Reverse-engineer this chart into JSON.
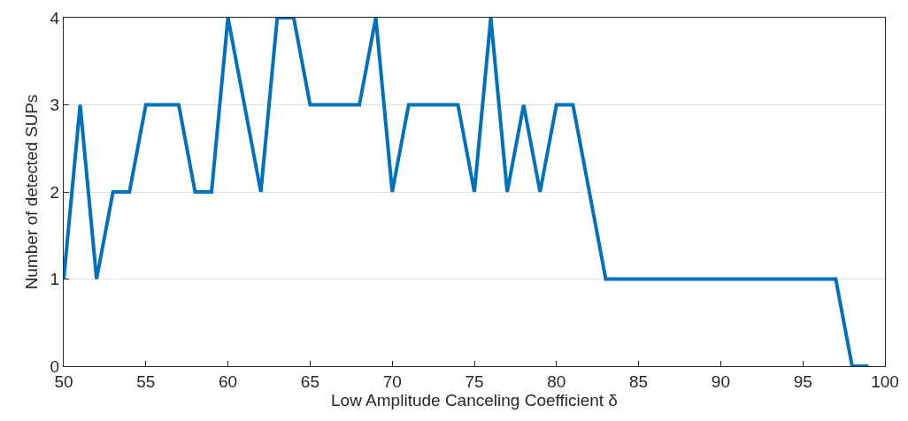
{
  "chart_data": {
    "type": "line",
    "xlabel": "Low Amplitude Canceling Coefficient δ",
    "ylabel": "Number of detected SUPs",
    "x": [
      50,
      51,
      52,
      53,
      54,
      55,
      56,
      57,
      58,
      59,
      60,
      61,
      62,
      63,
      64,
      65,
      66,
      67,
      68,
      69,
      70,
      71,
      72,
      73,
      74,
      75,
      76,
      77,
      78,
      79,
      80,
      81,
      82,
      83,
      84,
      85,
      86,
      87,
      88,
      89,
      90,
      91,
      92,
      93,
      94,
      95,
      96,
      97,
      98,
      99
    ],
    "series": [
      {
        "color": "#0072bd",
        "values": [
          1,
          3,
          1,
          2,
          2,
          3,
          3,
          3,
          2,
          2,
          4,
          3,
          2,
          4,
          4,
          3,
          3,
          3,
          3,
          4,
          2,
          3,
          3,
          3,
          3,
          2,
          4,
          2,
          3,
          2,
          3,
          3,
          2,
          1,
          1,
          1,
          1,
          1,
          1,
          1,
          1,
          1,
          1,
          1,
          1,
          1,
          1,
          1,
          0,
          0
        ]
      }
    ],
    "xlim": [
      50,
      100
    ],
    "xticks": [
      50,
      55,
      60,
      65,
      70,
      75,
      80,
      85,
      90,
      95,
      100
    ],
    "ylim": [
      0,
      4
    ],
    "yticks": [
      0,
      1,
      2,
      3,
      4
    ],
    "grid": "y",
    "marker": "none",
    "line_style": "solid"
  }
}
